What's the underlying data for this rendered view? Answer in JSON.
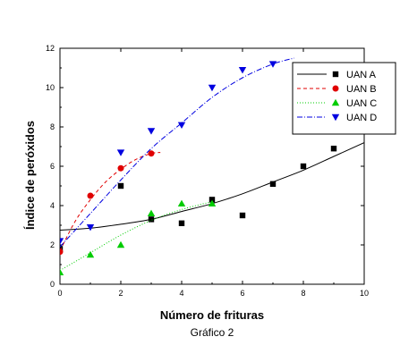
{
  "chart_data": {
    "type": "scatter",
    "caption": "Gráfico 2",
    "xlabel": "Número de frituras",
    "ylabel": "Índice de peróxidos",
    "xlim": [
      0,
      10
    ],
    "ylim": [
      0,
      12
    ],
    "xticks": [
      0,
      2,
      4,
      6,
      8,
      10
    ],
    "yticks": [
      0,
      2,
      4,
      6,
      8,
      10,
      12
    ],
    "grid": false,
    "legend_position": "top-right",
    "series": [
      {
        "name": "UAN A",
        "color": "#000000",
        "marker": "square",
        "line_style": "solid",
        "points": [
          [
            0,
            1.8
          ],
          [
            2,
            5.0
          ],
          [
            3,
            3.3
          ],
          [
            4,
            3.1
          ],
          [
            5,
            4.3
          ],
          [
            6,
            3.5
          ],
          [
            7,
            5.1
          ],
          [
            8,
            6.0
          ],
          [
            9,
            6.9
          ]
        ],
        "fit": [
          [
            0,
            2.75
          ],
          [
            1,
            2.85
          ],
          [
            2,
            3.05
          ],
          [
            3,
            3.3
          ],
          [
            4,
            3.7
          ],
          [
            5,
            4.1
          ],
          [
            6,
            4.6
          ],
          [
            7,
            5.2
          ],
          [
            8,
            5.8
          ],
          [
            9,
            6.5
          ],
          [
            10,
            7.2
          ]
        ]
      },
      {
        "name": "UAN B",
        "color": "#e00000",
        "marker": "circle",
        "line_style": "dashed",
        "points": [
          [
            0,
            1.65
          ],
          [
            1,
            4.5
          ],
          [
            2,
            5.9
          ],
          [
            3,
            6.65
          ]
        ],
        "fit": [
          [
            0,
            1.7
          ],
          [
            0.5,
            3.2
          ],
          [
            1,
            4.3
          ],
          [
            1.5,
            5.2
          ],
          [
            2,
            5.85
          ],
          [
            2.5,
            6.35
          ],
          [
            3,
            6.65
          ],
          [
            3.3,
            6.7
          ]
        ]
      },
      {
        "name": "UAN C",
        "color": "#00cc00",
        "marker": "triangle-up",
        "line_style": "dotted",
        "points": [
          [
            0,
            0.6
          ],
          [
            1,
            1.5
          ],
          [
            2,
            2.0
          ],
          [
            3,
            3.6
          ],
          [
            4,
            4.1
          ],
          [
            5,
            4.1
          ]
        ],
        "fit": [
          [
            0,
            0.7
          ],
          [
            1,
            1.6
          ],
          [
            2,
            2.5
          ],
          [
            3,
            3.25
          ],
          [
            4,
            3.8
          ],
          [
            5,
            4.2
          ]
        ]
      },
      {
        "name": "UAN D",
        "color": "#0000e0",
        "marker": "triangle-down",
        "line_style": "dashdot",
        "points": [
          [
            0,
            2.2
          ],
          [
            1,
            2.9
          ],
          [
            2,
            6.7
          ],
          [
            3,
            7.8
          ],
          [
            4,
            8.1
          ],
          [
            5,
            10.0
          ],
          [
            6,
            10.9
          ],
          [
            7,
            11.2
          ]
        ],
        "fit": [
          [
            0,
            1.9
          ],
          [
            1,
            3.6
          ],
          [
            2,
            5.3
          ],
          [
            3,
            6.9
          ],
          [
            4,
            8.2
          ],
          [
            5,
            9.5
          ],
          [
            6,
            10.5
          ],
          [
            7,
            11.2
          ],
          [
            7.7,
            11.5
          ]
        ]
      }
    ]
  }
}
